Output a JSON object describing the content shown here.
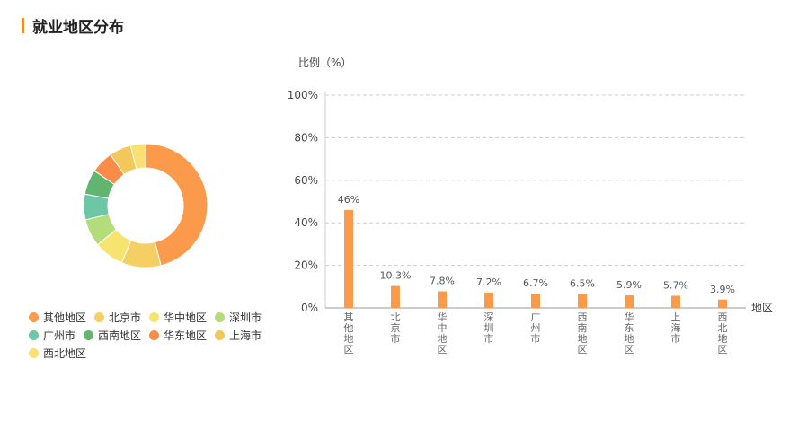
{
  "header": {
    "title": "就业地区分布"
  },
  "chart_data": [
    {
      "type": "pie",
      "variant": "donut",
      "categories": [
        "其他地区",
        "北京市",
        "华中地区",
        "深圳市",
        "广州市",
        "西南地区",
        "华东地区",
        "上海市",
        "西北地区"
      ],
      "values": [
        46,
        10.3,
        7.8,
        7.2,
        6.7,
        6.5,
        5.9,
        5.7,
        3.9
      ],
      "colors": [
        "#fb9a4a",
        "#f5cf64",
        "#f7e46e",
        "#b3dc7b",
        "#6dc6a6",
        "#62b56f",
        "#fb8b48",
        "#f3c85a",
        "#f9e070"
      ],
      "legend_position": "bottom-left"
    },
    {
      "type": "bar",
      "categories": [
        "其他地区",
        "北京市",
        "华中地区",
        "深圳市",
        "广州市",
        "西南地区",
        "华东地区",
        "上海市",
        "西北地区"
      ],
      "values": [
        46,
        10.3,
        7.8,
        7.2,
        6.7,
        6.5,
        5.9,
        5.7,
        3.9
      ],
      "data_labels": [
        "46%",
        "10.3%",
        "7.8%",
        "7.2%",
        "6.7%",
        "6.5%",
        "5.9%",
        "5.7%",
        "3.9%"
      ],
      "ylabel": "比例（%）",
      "xlabel": "地区",
      "ylim": [
        0,
        100
      ],
      "yticks": [
        "0%",
        "20%",
        "40%",
        "60%",
        "80%",
        "100%"
      ],
      "grid": true,
      "bar_color": "#fb9a4a"
    }
  ]
}
